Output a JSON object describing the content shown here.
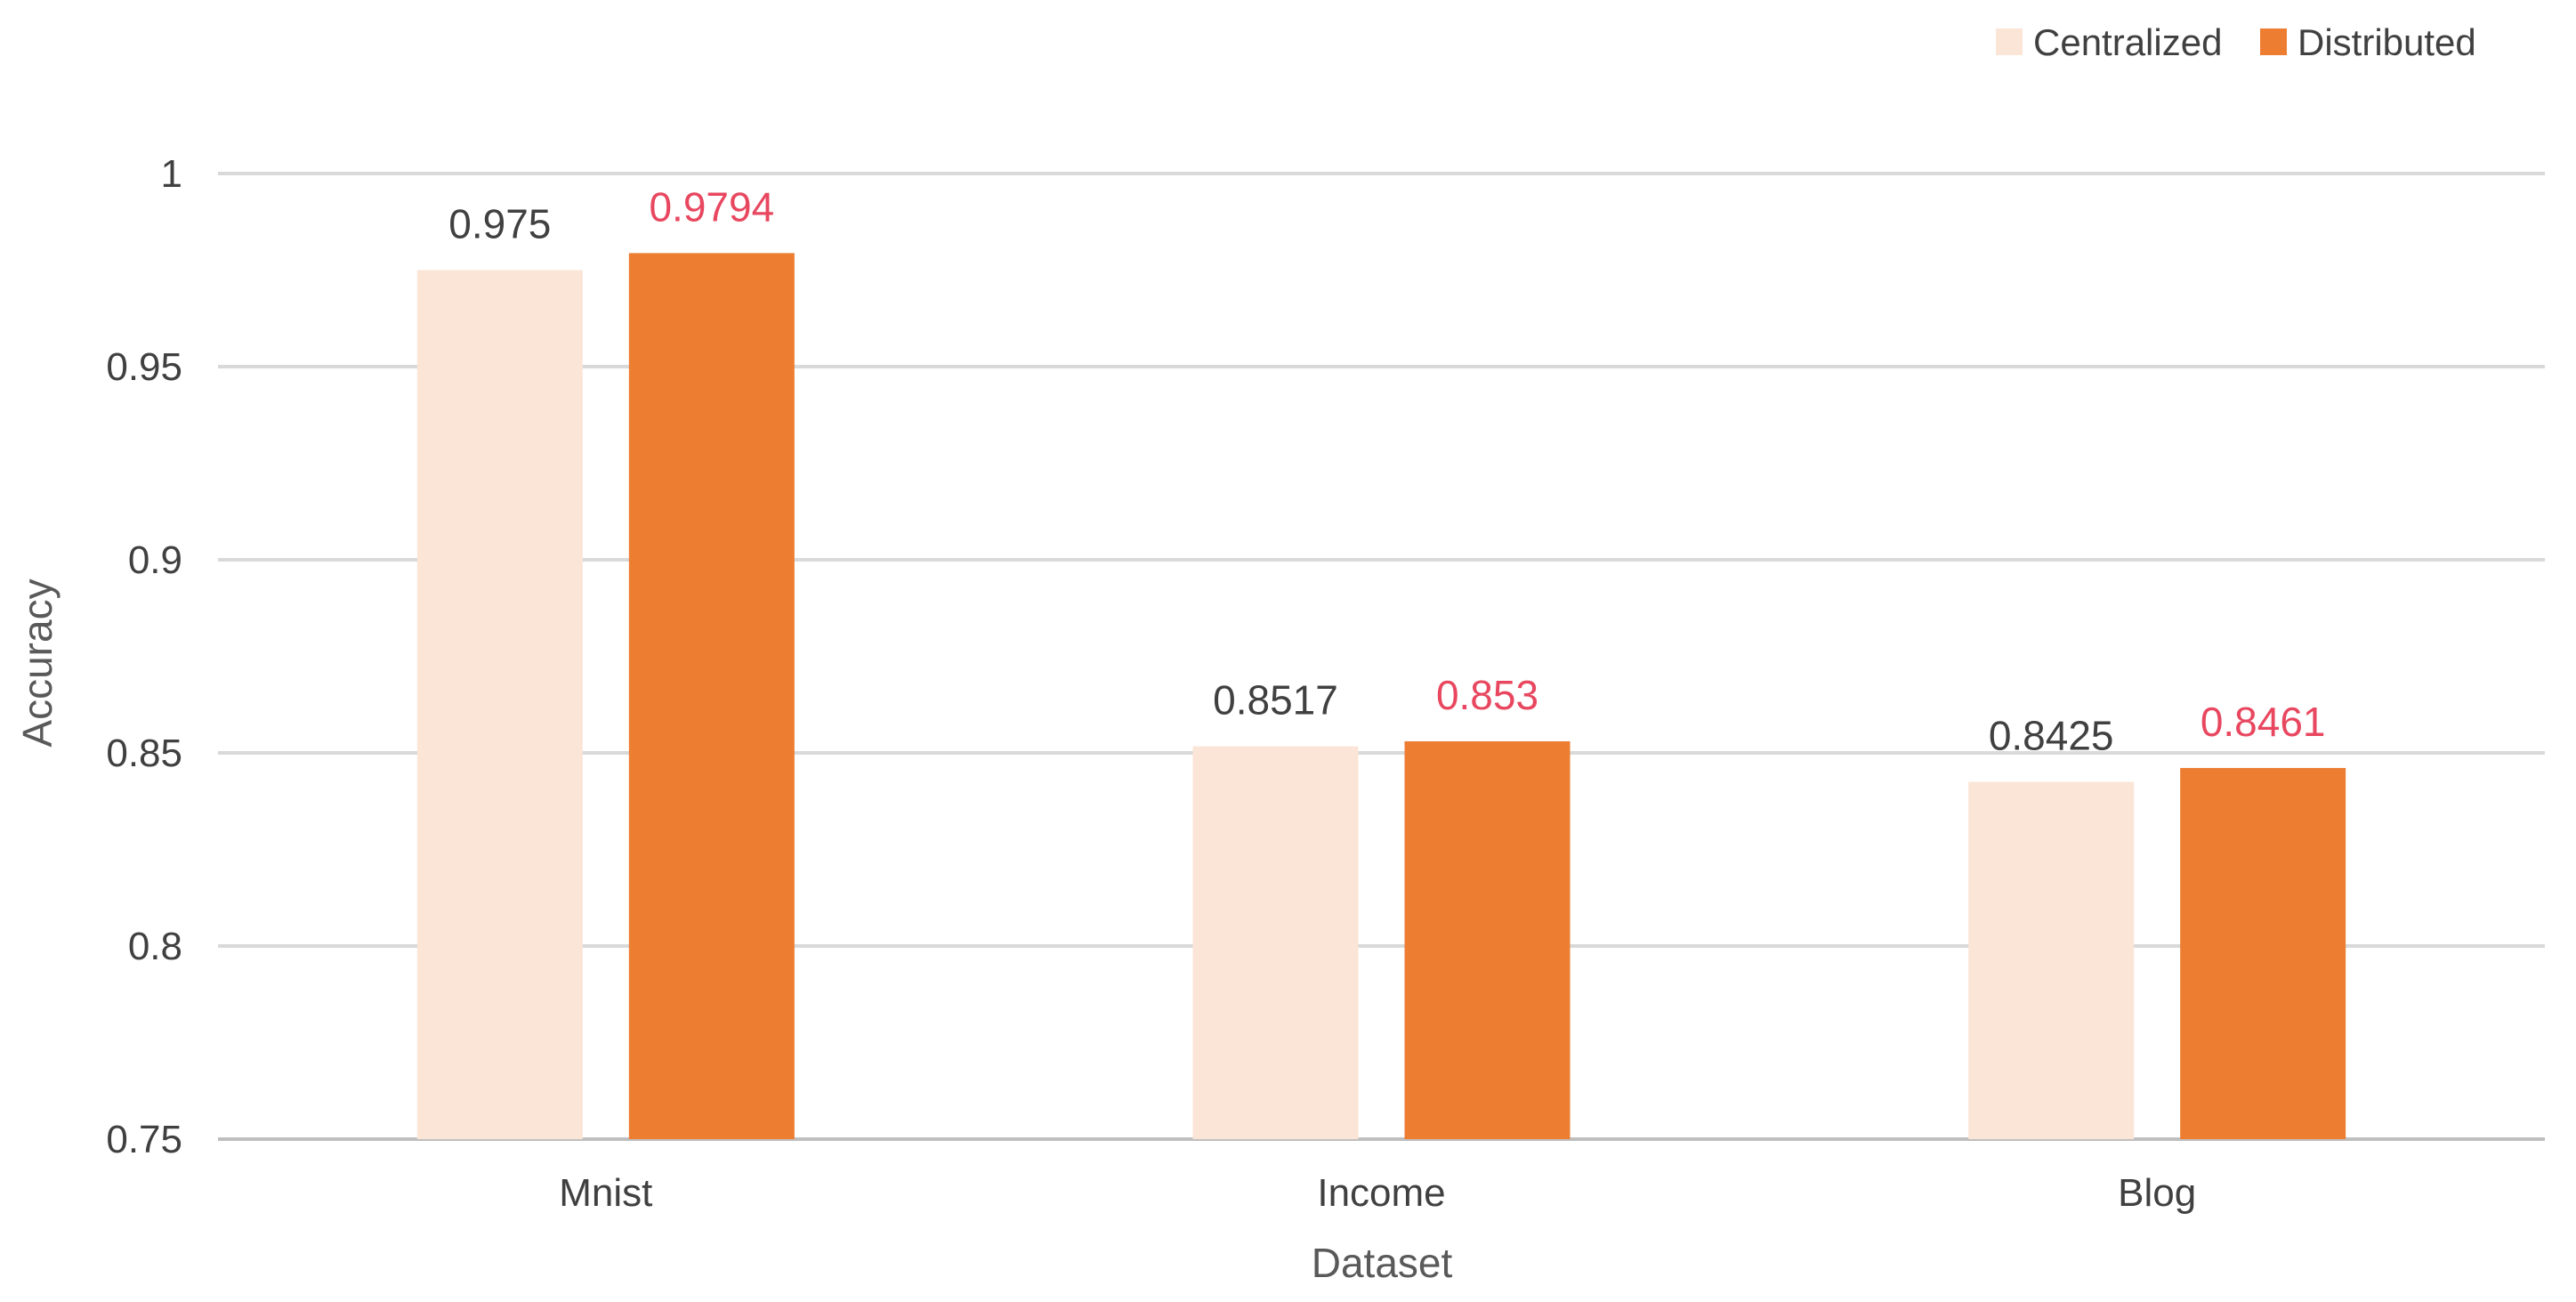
{
  "chart_data": {
    "type": "bar",
    "categories": [
      "Mnist",
      "Income",
      "Blog"
    ],
    "series": [
      {
        "name": "Centralized",
        "values": [
          0.975,
          0.8517,
          0.8425
        ],
        "labels": [
          "0.975",
          "0.8517",
          "0.8425"
        ],
        "color": "#fbe5d6",
        "label_color": "#404040"
      },
      {
        "name": "Distributed",
        "values": [
          0.9794,
          0.853,
          0.8461
        ],
        "labels": [
          "0.9794",
          "0.853",
          "0.8461"
        ],
        "color": "#ed7d31",
        "label_color": "#e8475f"
      }
    ],
    "title": "",
    "xlabel": "Dataset",
    "ylabel": "Accuracy",
    "ylim": [
      0.75,
      1
    ],
    "yticks": [
      0.75,
      0.8,
      0.85,
      0.9,
      0.95,
      1
    ],
    "ytick_labels": [
      "0.75",
      "0.8",
      "0.85",
      "0.9",
      "0.95",
      "1"
    ],
    "grid": true,
    "legend_position": "top-right"
  }
}
